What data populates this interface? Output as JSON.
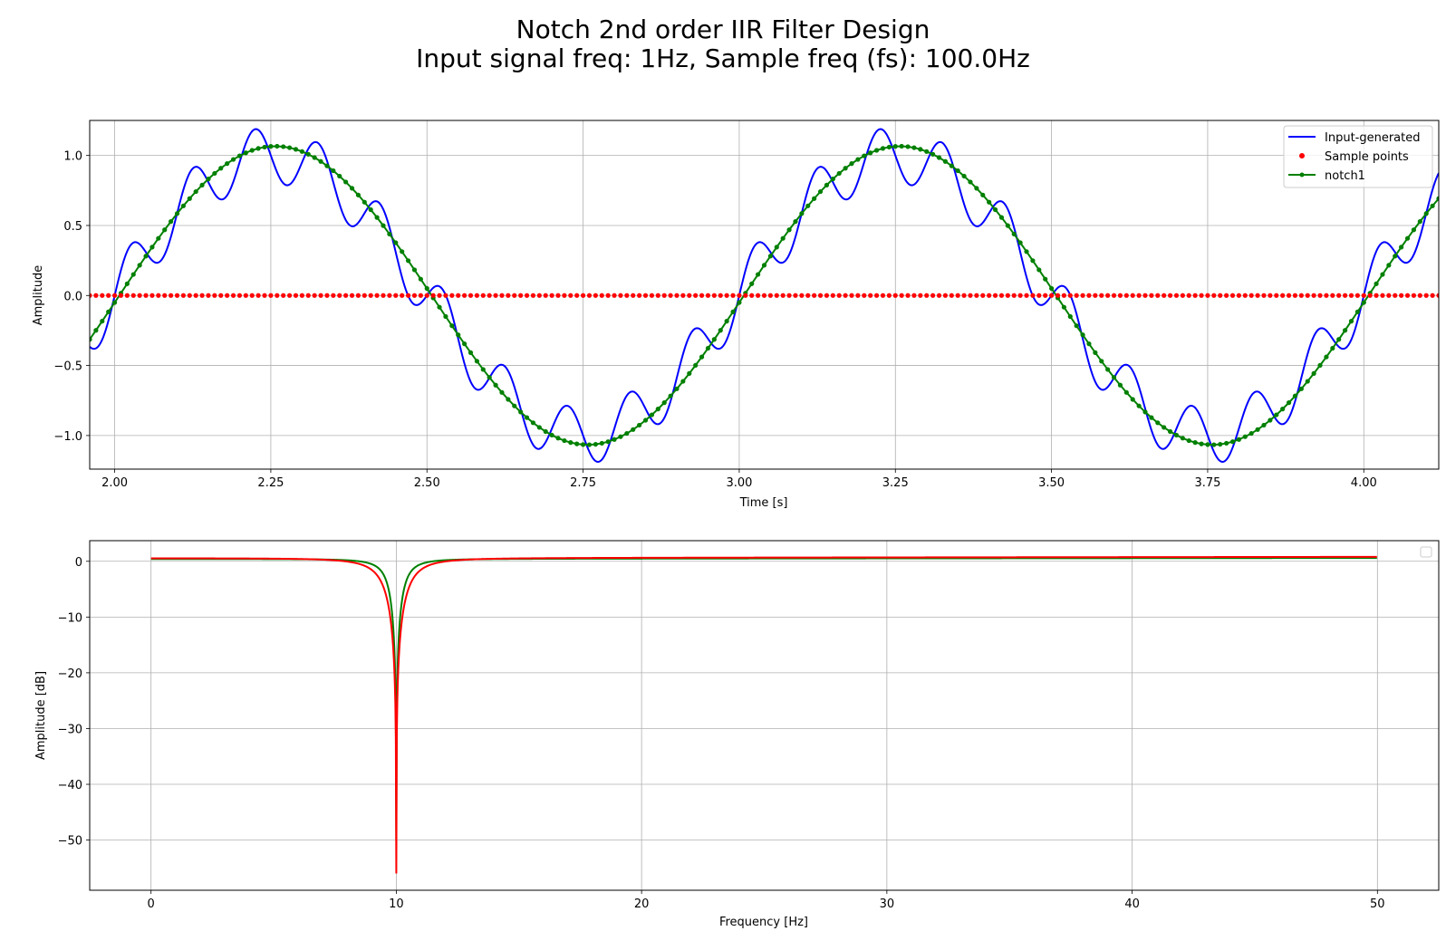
{
  "figure": {
    "title_line1": "Notch 2nd order IIR Filter Design",
    "title_line2": "Input signal freq: 1Hz, Sample freq (fs): 100.0Hz"
  },
  "colors": {
    "input": "#0000ff",
    "samples": "#ff0000",
    "notch": "#008000",
    "response_red": "#ff0000",
    "response_green": "#008000",
    "grid": "#b0b0b0"
  },
  "chart_data": [
    {
      "type": "line",
      "xlabel": "Time [s]",
      "ylabel": "Amplitude",
      "xlim": [
        1.96,
        4.12
      ],
      "ylim": [
        -1.24,
        1.25
      ],
      "xticks": [
        2.0,
        2.25,
        2.5,
        2.75,
        3.0,
        3.25,
        3.5,
        3.75,
        4.0
      ],
      "xtick_labels": [
        "2.00",
        "2.25",
        "2.50",
        "2.75",
        "3.00",
        "3.25",
        "3.50",
        "3.75",
        "4.00"
      ],
      "yticks": [
        -1.0,
        -0.5,
        0.0,
        0.5,
        1.0
      ],
      "ytick_labels": [
        "−1.0",
        "−0.5",
        "0.0",
        "0.5",
        "1.0"
      ],
      "grid": true,
      "legend_position": "upper right",
      "series": [
        {
          "name": "Input-generated",
          "style": "line",
          "formula": "sin(2π·1·t) + 0.2·sin(2π·10·t)",
          "x_range": [
            1.96,
            4.12
          ],
          "dt": 0.002
        },
        {
          "name": "Sample points",
          "style": "dots",
          "x_start": 1.96,
          "x_end": 4.12,
          "dt": 0.01,
          "y": 0.0
        },
        {
          "name": "notch1",
          "style": "line+markers",
          "formula": "1.066·sin(2π·1·(t − 0.0075))",
          "x_start": 1.96,
          "x_end": 4.12,
          "dt": 0.01
        }
      ]
    },
    {
      "type": "line",
      "xlabel": "Frequency [Hz]",
      "ylabel": "Amplitude [dB]",
      "xlim": [
        -2.5,
        52.5
      ],
      "ylim": [
        -59,
        3.7
      ],
      "xticks": [
        0,
        10,
        20,
        30,
        40,
        50
      ],
      "xtick_labels": [
        "0",
        "10",
        "20",
        "30",
        "40",
        "50"
      ],
      "yticks": [
        0,
        -10,
        -20,
        -30,
        -40,
        -50
      ],
      "ytick_labels": [
        "0",
        "−10",
        "−20",
        "−30",
        "−40",
        "−50"
      ],
      "grid": true,
      "legend_position": "upper right",
      "notch_frequency": 10,
      "series": [
        {
          "name": "",
          "color": "green",
          "min_db": -50,
          "notch_width_hz": 0.5,
          "passband_db": 0.6
        },
        {
          "name": "",
          "color": "red",
          "min_db": -56,
          "notch_width_hz": 0.8,
          "passband_db": 0.8
        }
      ]
    }
  ]
}
